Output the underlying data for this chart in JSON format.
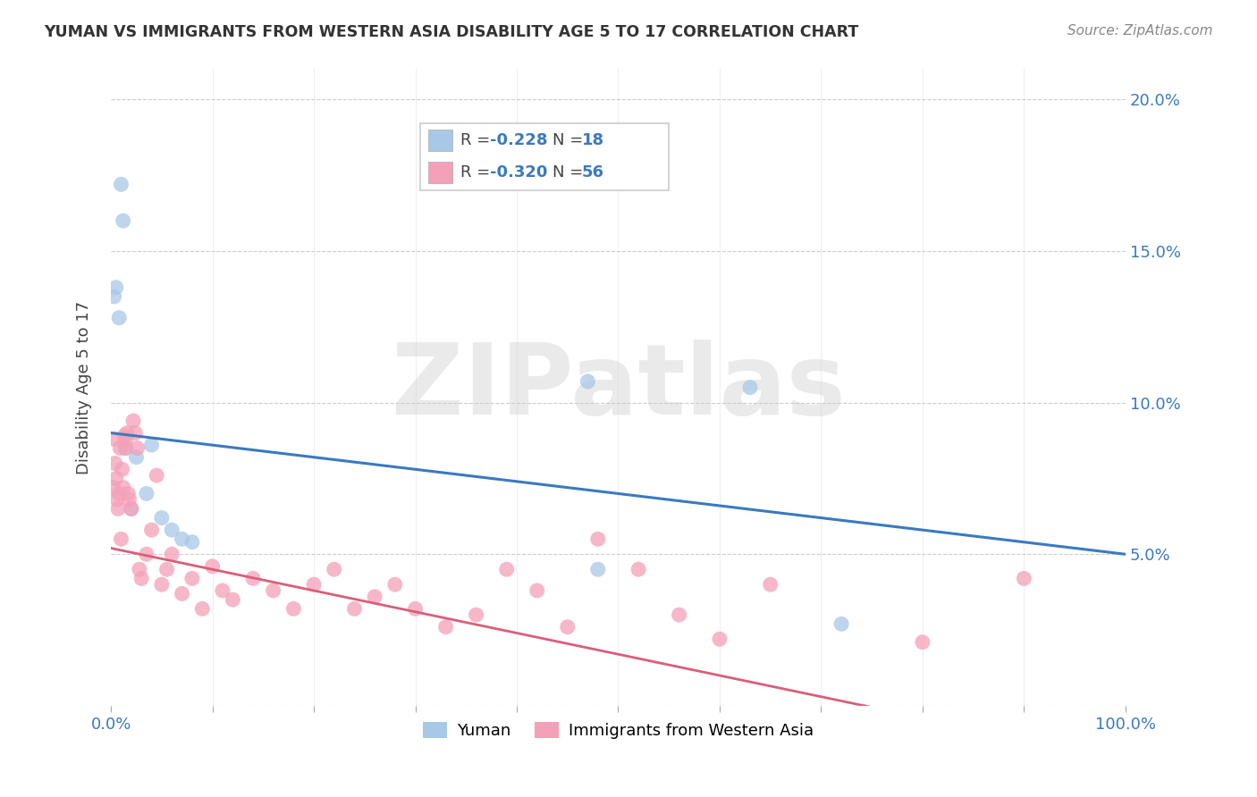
{
  "title": "YUMAN VS IMMIGRANTS FROM WESTERN ASIA DISABILITY AGE 5 TO 17 CORRELATION CHART",
  "source": "Source: ZipAtlas.com",
  "ylabel": "Disability Age 5 to 17",
  "legend_label1": "Yuman",
  "legend_label2": "Immigrants from Western Asia",
  "R1": -0.228,
  "N1": 18,
  "R2": -0.32,
  "N2": 56,
  "blue_color": "#a8c8e8",
  "pink_color": "#f4a0b8",
  "blue_line_color": "#3a7abf",
  "pink_line_color": "#d95f7a",
  "watermark": "ZIPatlas",
  "yuman_x": [
    0.5,
    1.0,
    1.2,
    0.3,
    0.8,
    1.5,
    2.5,
    4.0,
    3.5,
    2.0,
    5.0,
    6.0,
    7.0,
    8.0,
    47.0,
    63.0,
    48.0,
    72.0
  ],
  "yuman_y": [
    13.8,
    17.2,
    16.0,
    13.5,
    12.8,
    8.5,
    8.2,
    8.6,
    7.0,
    6.5,
    6.2,
    5.8,
    5.5,
    5.4,
    10.7,
    10.5,
    4.5,
    2.7
  ],
  "immigrants_x": [
    0.2,
    0.3,
    0.4,
    0.5,
    0.6,
    0.7,
    0.8,
    0.9,
    1.0,
    1.1,
    1.2,
    1.3,
    1.4,
    1.5,
    1.6,
    1.7,
    1.8,
    2.0,
    2.2,
    2.4,
    2.6,
    2.8,
    3.0,
    3.5,
    4.0,
    4.5,
    5.0,
    5.5,
    6.0,
    7.0,
    8.0,
    9.0,
    10.0,
    11.0,
    12.0,
    14.0,
    16.0,
    18.0,
    20.0,
    22.0,
    24.0,
    26.0,
    28.0,
    30.0,
    33.0,
    36.0,
    39.0,
    42.0,
    45.0,
    48.0,
    52.0,
    56.0,
    60.0,
    65.0,
    80.0,
    90.0
  ],
  "immigrants_y": [
    7.2,
    8.8,
    8.0,
    7.5,
    6.8,
    6.5,
    7.0,
    8.5,
    5.5,
    7.8,
    7.2,
    8.9,
    8.5,
    8.8,
    9.0,
    7.0,
    6.8,
    6.5,
    9.4,
    9.0,
    8.5,
    4.5,
    4.2,
    5.0,
    5.8,
    7.6,
    4.0,
    4.5,
    5.0,
    3.7,
    4.2,
    3.2,
    4.6,
    3.8,
    3.5,
    4.2,
    3.8,
    3.2,
    4.0,
    4.5,
    3.2,
    3.6,
    4.0,
    3.2,
    2.6,
    3.0,
    4.5,
    3.8,
    2.6,
    5.5,
    4.5,
    3.0,
    2.2,
    4.0,
    2.1,
    4.2
  ],
  "xlim": [
    0,
    100
  ],
  "ylim": [
    0,
    21
  ],
  "ytick_values": [
    0,
    5,
    10,
    15,
    20
  ],
  "xtick_values": [
    0,
    10,
    20,
    30,
    40,
    50,
    60,
    70,
    80,
    90,
    100
  ],
  "blue_trendline_y_start": 9.0,
  "blue_trendline_y_end": 5.0,
  "pink_trendline_y_start": 5.2,
  "pink_trendline_y_end": -1.8
}
